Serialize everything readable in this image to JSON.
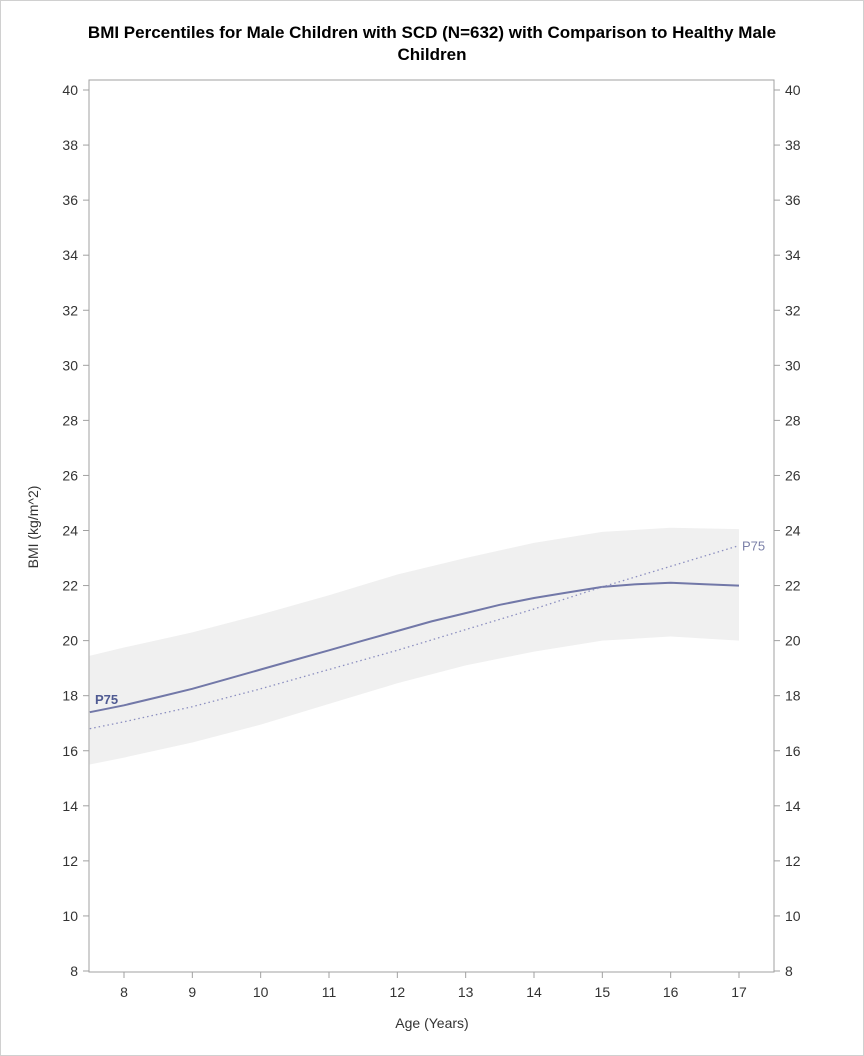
{
  "chart_data": {
    "type": "line",
    "title_line1": "BMI Percentiles for Male Children with SCD (N=632) with Comparison to Healthy Male",
    "title_line2": "Children",
    "xlabel": "Age (Years)",
    "ylabel": "BMI (kg/m^2)",
    "xlim": [
      7.5,
      17.5
    ],
    "ylim": [
      8,
      40
    ],
    "x_ticks": [
      8,
      9,
      10,
      11,
      12,
      13,
      14,
      15,
      16,
      17
    ],
    "y_ticks": [
      8,
      10,
      12,
      14,
      16,
      18,
      20,
      22,
      24,
      26,
      28,
      30,
      32,
      34,
      36,
      38,
      40
    ],
    "right_axis": true,
    "grid": false,
    "band": {
      "x": [
        7.5,
        8,
        9,
        10,
        11,
        12,
        13,
        14,
        15,
        16,
        17
      ],
      "lower": [
        15.5,
        15.75,
        16.3,
        16.95,
        17.7,
        18.45,
        19.1,
        19.6,
        20.0,
        20.15,
        20.0
      ],
      "upper": [
        19.45,
        19.75,
        20.3,
        20.95,
        21.65,
        22.4,
        23.0,
        23.55,
        23.95,
        24.1,
        24.05
      ]
    },
    "series": [
      {
        "label": "P75",
        "style": "solid",
        "x": [
          7.5,
          8,
          8.5,
          9,
          9.5,
          10,
          10.5,
          11,
          11.5,
          12,
          12.5,
          13,
          13.5,
          14,
          14.5,
          15,
          15.5,
          16,
          16.5,
          17
        ],
        "y": [
          17.4,
          17.65,
          17.95,
          18.25,
          18.6,
          18.95,
          19.3,
          19.65,
          20.0,
          20.35,
          20.7,
          21.0,
          21.3,
          21.55,
          21.75,
          21.95,
          22.05,
          22.1,
          22.05,
          22.0
        ]
      },
      {
        "label": "P75",
        "style": "dotted",
        "x": [
          7.5,
          8,
          9,
          10,
          11,
          12,
          13,
          14,
          15,
          16,
          17
        ],
        "y": [
          16.8,
          17.05,
          17.6,
          18.25,
          18.95,
          19.65,
          20.4,
          21.15,
          21.95,
          22.7,
          23.45
        ]
      }
    ],
    "colors": {
      "band": "#f0f0f0",
      "axis": "#a0a0a0",
      "solid_line": "#7278a8",
      "dotted_line": "#8c8fc0",
      "solid_label": "#4f5a92",
      "dotted_label": "#7b80a8"
    }
  }
}
